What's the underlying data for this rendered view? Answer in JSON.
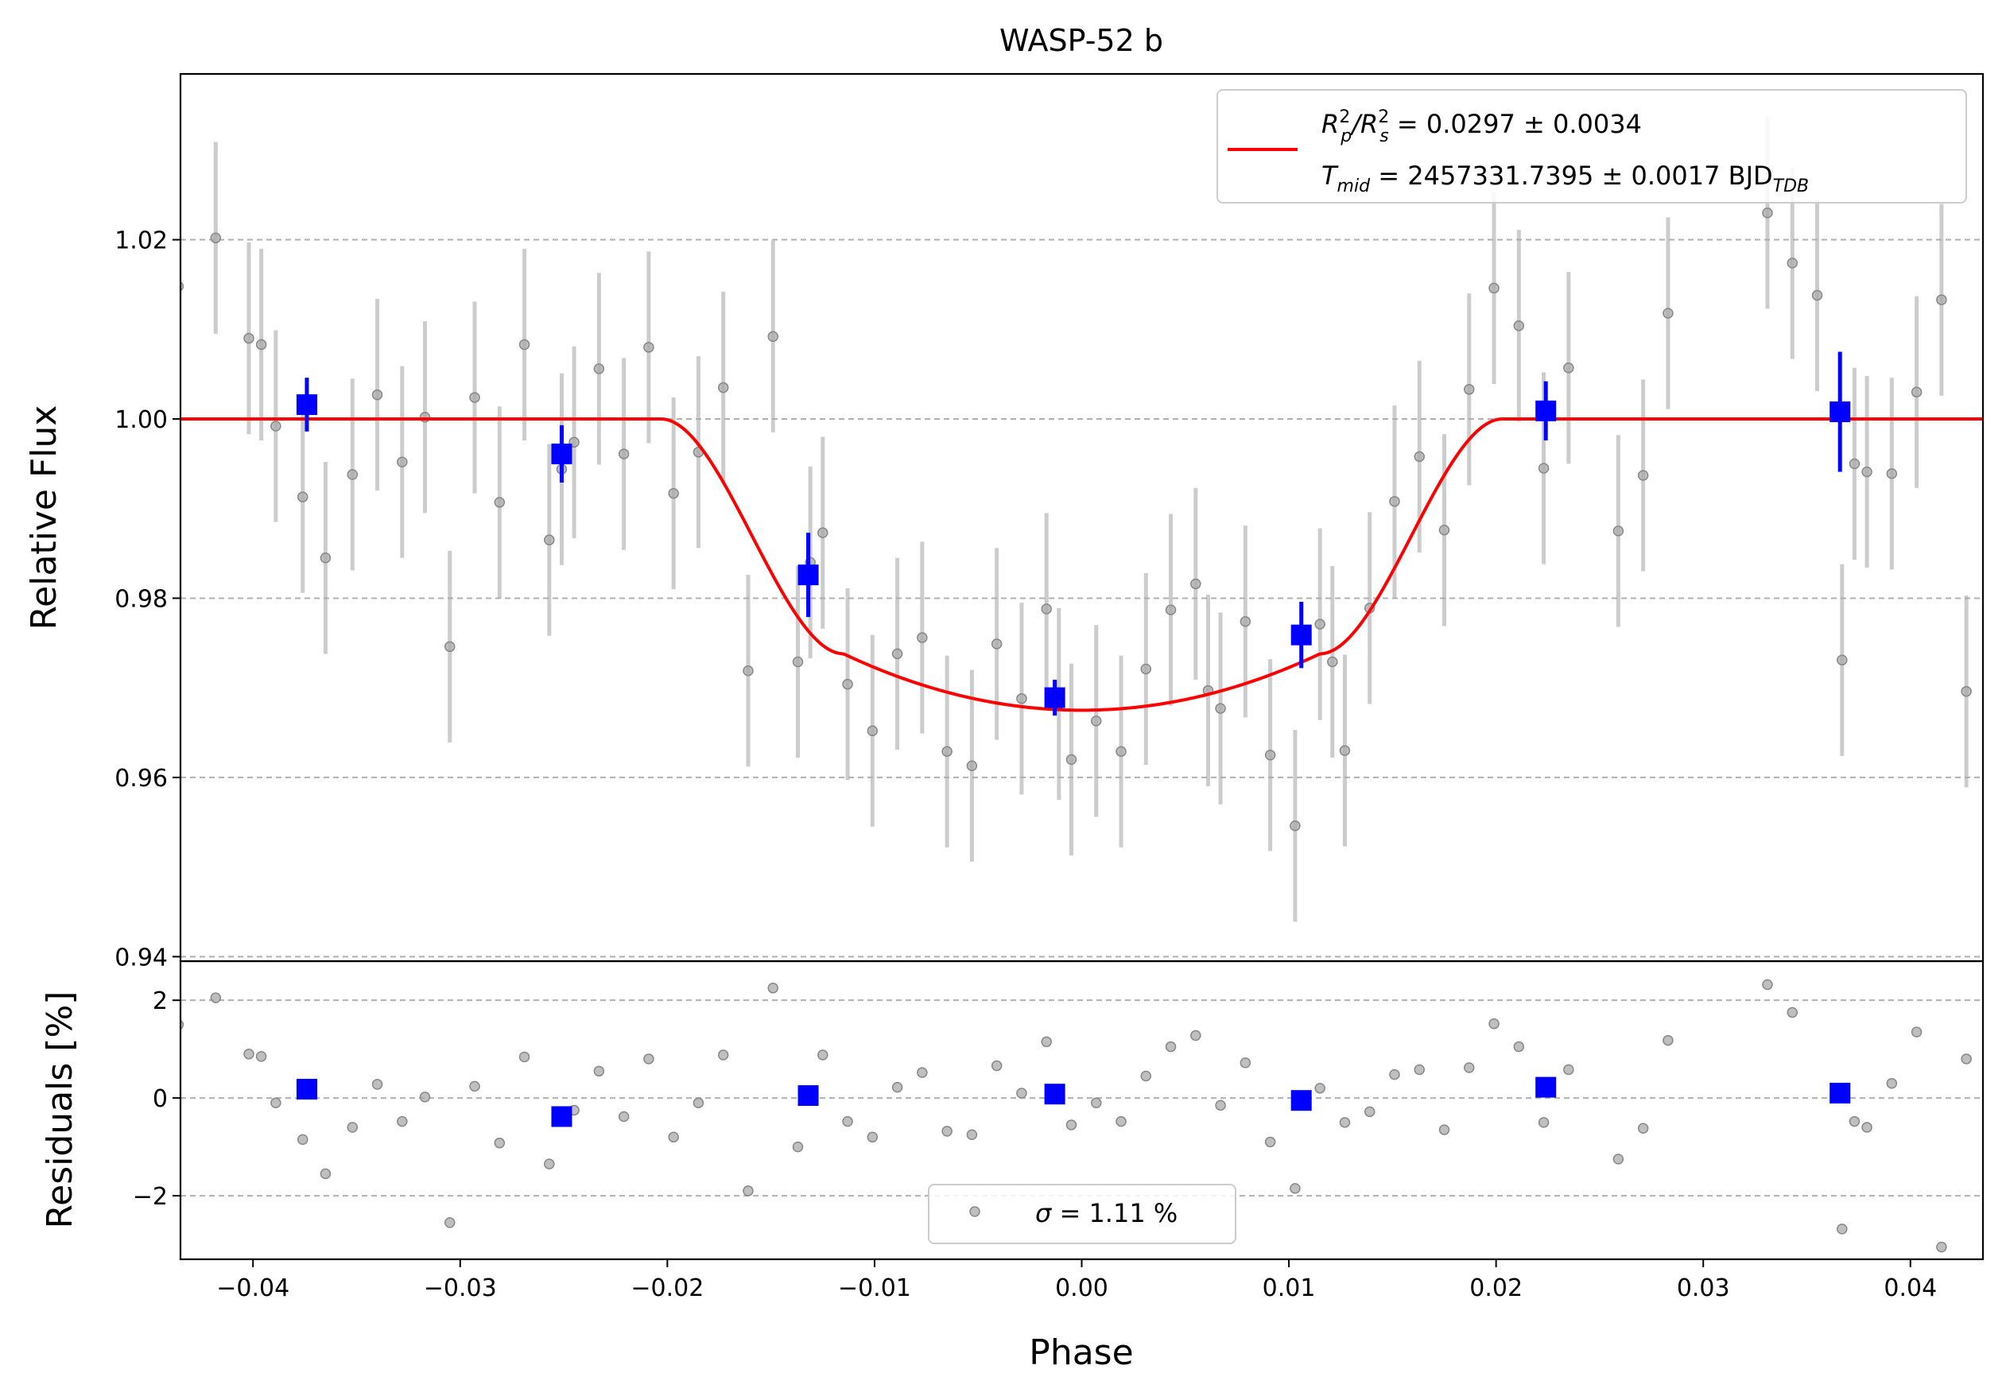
{
  "chart_data": [
    {
      "type": "scatter",
      "panel": "flux",
      "title": "WASP-52 b",
      "xlabel": "",
      "ylabel": "Relative Flux",
      "xlim": [
        -0.0435,
        0.0435
      ],
      "ylim": [
        0.9395,
        1.0385
      ],
      "yticks": [
        0.94,
        0.96,
        0.98,
        1.0,
        1.02
      ],
      "ytick_labels": [
        "0.94",
        "0.96",
        "0.98",
        "1.00",
        "1.02"
      ],
      "grid": "horizontal dashed",
      "legend_position": "top-right",
      "legend": {
        "line1": {
          "main": "R",
          "sub1": "p",
          "sup1": "2",
          "mid": "/R",
          "sub2": "s",
          "sup2": "2",
          "value": " = 0.0297 ± 0.0034"
        },
        "line2": {
          "main": "T",
          "sub": "mid",
          "value": " = 2457331.7395 ± 0.0017 BJD",
          "value_sub": "TDB"
        }
      },
      "model": {
        "color": "#ff0000",
        "t0": 0.0,
        "t_full": 0.0115,
        "t_total": 0.0203,
        "baseline": 1.0,
        "center": 0.9675,
        "ingress_edge": 0.9738
      },
      "raw_points": {
        "color": "#aaaaaa",
        "error": 0.0107,
        "x": [
          -0.0436,
          -0.0418,
          -0.0402,
          -0.0396,
          -0.0389,
          -0.0376,
          -0.0365,
          -0.0352,
          -0.034,
          -0.0328,
          -0.0317,
          -0.0305,
          -0.0293,
          -0.0281,
          -0.0269,
          -0.0257,
          -0.0251,
          -0.0245,
          -0.0233,
          -0.0221,
          -0.0209,
          -0.0197,
          -0.0185,
          -0.0173,
          -0.0161,
          -0.0149,
          -0.0137,
          -0.0131,
          -0.0125,
          -0.0113,
          -0.0101,
          -0.0089,
          -0.0077,
          -0.0065,
          -0.0053,
          -0.0041,
          -0.0029,
          -0.0017,
          -0.0011,
          -0.0005,
          0.0007,
          0.0019,
          0.0031,
          0.0043,
          0.0055,
          0.0061,
          0.0067,
          0.0079,
          0.0091,
          0.0103,
          0.0115,
          0.0121,
          0.0127,
          0.0139,
          0.0151,
          0.0163,
          0.0175,
          0.0187,
          0.0199,
          0.0211,
          0.0223,
          0.0235,
          0.0259,
          0.0271,
          0.0283,
          0.0331,
          0.0343,
          0.0355,
          0.0367,
          0.0373,
          0.0379,
          0.0391,
          0.0403,
          0.0415,
          0.0427,
          0.0439
        ],
        "y": [
          1.0148,
          1.0202,
          1.009,
          1.0083,
          0.9992,
          0.9913,
          0.9845,
          0.9938,
          1.0027,
          0.9952,
          1.0002,
          0.9746,
          1.0024,
          0.9907,
          1.0083,
          0.9865,
          0.9944,
          0.9974,
          1.0056,
          0.9961,
          1.008,
          0.9917,
          0.9963,
          1.0035,
          0.9719,
          1.0092,
          0.9729,
          0.984,
          0.9873,
          0.9704,
          0.9652,
          0.9738,
          0.9756,
          0.9629,
          0.9613,
          0.9749,
          0.9688,
          0.9788,
          0.9682,
          0.962,
          0.9663,
          0.9629,
          0.9721,
          0.9787,
          0.9816,
          0.9697,
          0.9677,
          0.9774,
          0.9625,
          0.9546,
          0.9771,
          0.9729,
          0.963,
          0.9789,
          0.9908,
          0.9958,
          0.9876,
          1.0033,
          1.0146,
          1.0104,
          0.9945,
          1.0057,
          0.9875,
          0.9937,
          1.0118,
          1.023,
          1.0174,
          1.0138,
          0.9731,
          0.995,
          0.9941,
          0.9939,
          1.003,
          1.0133,
          0.9696,
          1.0082
        ]
      },
      "binned_points": {
        "color": "#0000ff",
        "x": [
          -0.0374,
          -0.0251,
          -0.0132,
          -0.0013,
          0.0106,
          0.0224,
          0.0366
        ],
        "y": [
          1.0016,
          0.9961,
          0.9826,
          0.9689,
          0.9759,
          1.0009,
          1.0008
        ],
        "yerr": [
          0.003,
          0.0032,
          0.0047,
          0.002,
          0.0037,
          0.0033,
          0.0067
        ]
      }
    },
    {
      "type": "scatter",
      "panel": "residuals",
      "xlabel": "Phase",
      "ylabel": "Residuals [%]",
      "xlim": [
        -0.0435,
        0.0435
      ],
      "ylim": [
        -3.3,
        2.8
      ],
      "xticks": [
        -0.04,
        -0.03,
        -0.02,
        -0.01,
        0.0,
        0.01,
        0.02,
        0.03,
        0.04
      ],
      "xtick_labels": [
        "−0.04",
        "−0.03",
        "−0.02",
        "−0.01",
        "0.00",
        "0.01",
        "0.02",
        "0.03",
        "0.04"
      ],
      "yticks": [
        -2,
        0,
        2
      ],
      "ytick_labels": [
        "−2",
        "0",
        "2"
      ],
      "grid": "horizontal dashed",
      "legend_position": "bottom-center",
      "legend": {
        "symbol": "σ",
        "value": " = 1.11 %"
      },
      "raw_residuals": {
        "color": "#aaaaaa",
        "x": [
          -0.0436,
          -0.0418,
          -0.0402,
          -0.0396,
          -0.0389,
          -0.0376,
          -0.0365,
          -0.0352,
          -0.034,
          -0.0328,
          -0.0317,
          -0.0305,
          -0.0293,
          -0.0281,
          -0.0269,
          -0.0257,
          -0.0245,
          -0.0233,
          -0.0221,
          -0.0209,
          -0.0197,
          -0.0185,
          -0.0173,
          -0.0161,
          -0.0149,
          -0.0137,
          -0.0125,
          -0.0113,
          -0.0101,
          -0.0089,
          -0.0077,
          -0.0065,
          -0.0053,
          -0.0041,
          -0.0029,
          -0.0017,
          -0.0005,
          0.0007,
          0.0019,
          0.0031,
          0.0043,
          0.0055,
          0.0067,
          0.0079,
          0.0091,
          0.0103,
          0.0115,
          0.0127,
          0.0139,
          0.0151,
          0.0163,
          0.0175,
          0.0187,
          0.0199,
          0.0211,
          0.0223,
          0.0235,
          0.0259,
          0.0271,
          0.0283,
          0.0331,
          0.0343,
          0.0367,
          0.0373,
          0.0379,
          0.0391,
          0.0403,
          0.0415,
          0.0427,
          0.0439
        ],
        "y": [
          1.5,
          2.05,
          0.9,
          0.85,
          -0.1,
          -0.85,
          -1.55,
          -0.6,
          0.28,
          -0.48,
          0.02,
          -2.55,
          0.24,
          -0.92,
          0.84,
          -1.35,
          -0.25,
          0.55,
          -0.38,
          0.8,
          -0.8,
          -0.1,
          0.88,
          -1.9,
          2.25,
          -1.0,
          0.88,
          -0.48,
          -0.8,
          0.22,
          0.52,
          -0.68,
          -0.75,
          0.66,
          0.1,
          1.15,
          -0.55,
          -0.1,
          -0.48,
          0.45,
          1.05,
          1.28,
          -0.15,
          0.72,
          -0.9,
          -1.85,
          0.2,
          -0.5,
          -0.28,
          0.48,
          0.58,
          -0.65,
          0.62,
          1.52,
          1.05,
          -0.5,
          0.58,
          -1.25,
          -0.62,
          1.18,
          2.32,
          1.75,
          -2.68,
          -0.48,
          -0.6,
          0.3,
          1.35,
          -3.05,
          0.8,
          0.82
        ]
      },
      "binned_residuals": {
        "color": "#0000ff",
        "x": [
          -0.0374,
          -0.0251,
          -0.0132,
          -0.0013,
          0.0106,
          0.0224,
          0.0366
        ],
        "y": [
          0.18,
          -0.38,
          0.05,
          0.08,
          -0.05,
          0.22,
          0.1
        ]
      }
    }
  ]
}
